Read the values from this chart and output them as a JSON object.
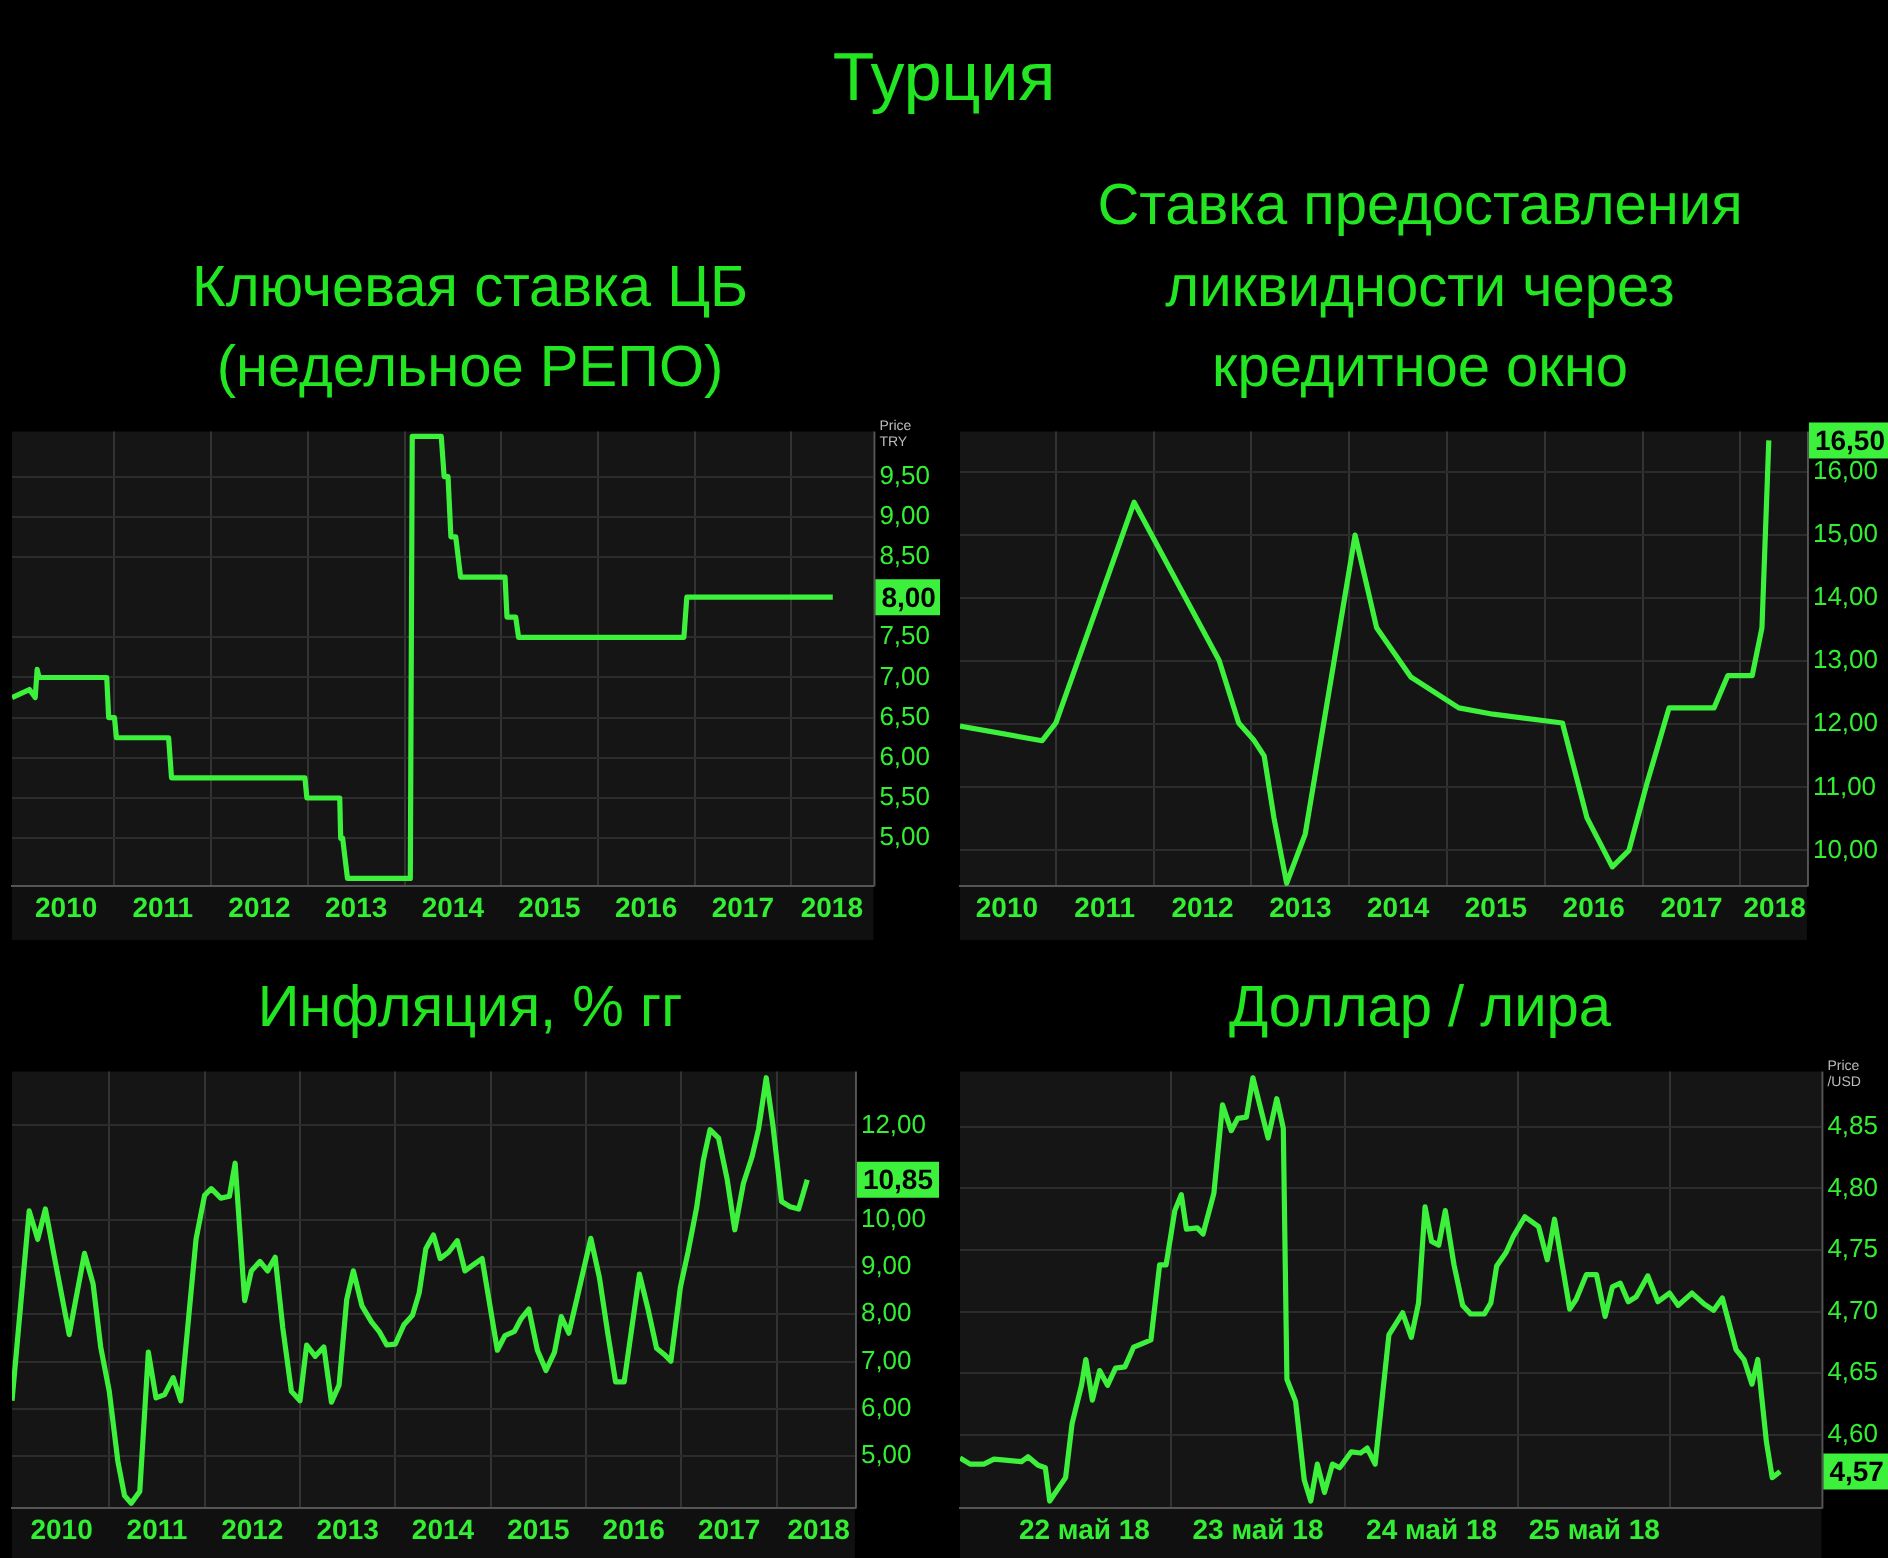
{
  "chart_data": [
    {
      "type": "other",
      "title": "Турция"
    },
    {
      "type": "line",
      "title": "Ключевая ставка ЦБ (недельное РЕПО)",
      "ylabel": "Price TRY",
      "grid": true,
      "legend": false,
      "xlim": [
        2009.94,
        2018.85
      ],
      "ylim": [
        4.4,
        10.06
      ],
      "xticks": [
        {
          "value": 2010.5,
          "label": "2010"
        },
        {
          "value": 2011,
          "label": null
        },
        {
          "value": 2011.5,
          "label": "2011"
        },
        {
          "value": 2012,
          "label": null
        },
        {
          "value": 2012.5,
          "label": "2012"
        },
        {
          "value": 2013,
          "label": null
        },
        {
          "value": 2013.5,
          "label": "2013"
        },
        {
          "value": 2014,
          "label": null
        },
        {
          "value": 2014.5,
          "label": "2014"
        },
        {
          "value": 2015,
          "label": null
        },
        {
          "value": 2015.5,
          "label": "2015"
        },
        {
          "value": 2016,
          "label": null
        },
        {
          "value": 2016.5,
          "label": "2016"
        },
        {
          "value": 2017,
          "label": null
        },
        {
          "value": 2017.5,
          "label": "2017"
        },
        {
          "value": 2018,
          "label": null
        },
        {
          "value": 2018.42,
          "label": "2018"
        }
      ],
      "yticks": [
        {
          "value": 5,
          "label": "5,00"
        },
        {
          "value": 5.5,
          "label": "5,50"
        },
        {
          "value": 6,
          "label": "6,00"
        },
        {
          "value": 6.5,
          "label": "6,50"
        },
        {
          "value": 7,
          "label": "7,00"
        },
        {
          "value": 7.5,
          "label": "7,50"
        },
        {
          "value": 8.5,
          "label": "8,50"
        },
        {
          "value": 9,
          "label": "9,00"
        },
        {
          "value": 9.5,
          "label": "9,50"
        }
      ],
      "annotations": [
        {
          "text": "8,00",
          "y": 8
        }
      ],
      "series": [
        {
          "color": "#3cf03c",
          "x": [
            2009.94,
            2010.12,
            2010.18,
            2010.2,
            2010.22,
            2010.92,
            2010.94,
            2011.0,
            2011.02,
            2011.56,
            2011.59,
            2012.97,
            2012.99,
            2013.33,
            2013.34,
            2013.36,
            2013.41,
            2014.06,
            2014.08,
            2014.38,
            2014.41,
            2014.45,
            2014.48,
            2014.53,
            2014.58,
            2015.04,
            2015.06,
            2015.15,
            2015.18,
            2016.89,
            2016.92,
            2018.43
          ],
          "values": [
            6.75,
            6.85,
            6.75,
            7.1,
            7.0,
            7.0,
            6.5,
            6.5,
            6.25,
            6.25,
            5.75,
            5.75,
            5.5,
            5.5,
            5.0,
            5.0,
            4.5,
            4.5,
            10.0,
            10.0,
            9.5,
            9.5,
            8.75,
            8.75,
            8.25,
            8.25,
            7.75,
            7.75,
            7.5,
            7.5,
            8.0,
            8.0
          ]
        }
      ]
    },
    {
      "type": "line",
      "title": "Ставка предоставления ликвидности через кредитное окно",
      "grid": true,
      "legend": false,
      "xlim": [
        2010.02,
        2018.68
      ],
      "ylim": [
        9.43,
        16.64
      ],
      "xticks": [
        {
          "value": 2010.5,
          "label": "2010"
        },
        {
          "value": 2011,
          "label": null
        },
        {
          "value": 2011.5,
          "label": "2011"
        },
        {
          "value": 2012,
          "label": null
        },
        {
          "value": 2012.5,
          "label": "2012"
        },
        {
          "value": 2013,
          "label": null
        },
        {
          "value": 2013.5,
          "label": "2013"
        },
        {
          "value": 2014,
          "label": null
        },
        {
          "value": 2014.5,
          "label": "2014"
        },
        {
          "value": 2015,
          "label": null
        },
        {
          "value": 2015.5,
          "label": "2015"
        },
        {
          "value": 2016,
          "label": null
        },
        {
          "value": 2016.5,
          "label": "2016"
        },
        {
          "value": 2017,
          "label": null
        },
        {
          "value": 2017.5,
          "label": "2017"
        },
        {
          "value": 2018,
          "label": null
        },
        {
          "value": 2018.35,
          "label": "2018"
        }
      ],
      "yticks": [
        {
          "value": 10,
          "label": "10,00"
        },
        {
          "value": 11,
          "label": "11,00"
        },
        {
          "value": 12,
          "label": "12,00"
        },
        {
          "value": 13,
          "label": "13,00"
        },
        {
          "value": 14,
          "label": "14,00"
        },
        {
          "value": 15,
          "label": "15,00"
        },
        {
          "value": 16,
          "label": "16,00"
        }
      ],
      "annotations": [
        {
          "text": "16,50",
          "y": 16.5
        }
      ],
      "series": [
        {
          "color": "#3cf03c",
          "x": [
            2010.02,
            2010.86,
            2011.0,
            2011.8,
            2012.67,
            2012.87,
            2013.02,
            2013.13,
            2013.23,
            2013.36,
            2013.55,
            2014.06,
            2014.28,
            2014.63,
            2015.12,
            2015.47,
            2016.18,
            2016.43,
            2016.69,
            2016.86,
            2017.04,
            2017.27,
            2017.73,
            2017.87,
            2018.12,
            2018.22,
            2018.29
          ],
          "values": [
            11.97,
            11.74,
            12.02,
            15.52,
            13.01,
            12.02,
            11.76,
            11.5,
            10.52,
            9.48,
            10.26,
            15.0,
            13.53,
            12.75,
            12.26,
            12.16,
            12.02,
            10.52,
            9.74,
            10.0,
            11.04,
            12.26,
            12.26,
            12.77,
            12.77,
            13.53,
            16.5
          ]
        }
      ]
    },
    {
      "type": "line",
      "title": "Инфляция, % гг",
      "grid": true,
      "legend": false,
      "xlim": [
        2009.98,
        2018.82
      ],
      "ylim": [
        3.89,
        13.14
      ],
      "xticks": [
        {
          "value": 2010.5,
          "label": "2010"
        },
        {
          "value": 2011,
          "label": null
        },
        {
          "value": 2011.5,
          "label": "2011"
        },
        {
          "value": 2012,
          "label": null
        },
        {
          "value": 2012.5,
          "label": "2012"
        },
        {
          "value": 2013,
          "label": null
        },
        {
          "value": 2013.5,
          "label": "2013"
        },
        {
          "value": 2014,
          "label": null
        },
        {
          "value": 2014.5,
          "label": "2014"
        },
        {
          "value": 2015,
          "label": null
        },
        {
          "value": 2015.5,
          "label": "2015"
        },
        {
          "value": 2016,
          "label": null
        },
        {
          "value": 2016.5,
          "label": "2016"
        },
        {
          "value": 2017,
          "label": null
        },
        {
          "value": 2017.5,
          "label": "2017"
        },
        {
          "value": 2018,
          "label": null
        },
        {
          "value": 2018.44,
          "label": "2018"
        }
      ],
      "yticks": [
        {
          "value": 5,
          "label": "5,00"
        },
        {
          "value": 6,
          "label": "6,00"
        },
        {
          "value": 7,
          "label": "7,00"
        },
        {
          "value": 8,
          "label": "8,00"
        },
        {
          "value": 9,
          "label": "9,00"
        },
        {
          "value": 10,
          "label": "10,00"
        },
        {
          "value": 12,
          "label": "12,00"
        }
      ],
      "annotations": [
        {
          "text": "10,85",
          "y": 10.85
        }
      ],
      "series": [
        {
          "color": "#3cf03c",
          "x": [
            2009.98,
            2010.16,
            2010.25,
            2010.33,
            2010.44,
            2010.58,
            2010.74,
            2010.83,
            2010.91,
            2011.0,
            2011.09,
            2011.16,
            2011.23,
            2011.32,
            2011.41,
            2011.49,
            2011.58,
            2011.67,
            2011.75,
            2011.91,
            2012.0,
            2012.07,
            2012.17,
            2012.26,
            2012.32,
            2012.42,
            2012.49,
            2012.58,
            2012.66,
            2012.74,
            2012.82,
            2012.91,
            2013.0,
            2013.07,
            2013.16,
            2013.25,
            2013.33,
            2013.41,
            2013.49,
            2013.56,
            2013.65,
            2013.75,
            2013.83,
            2013.91,
            2014.0,
            2014.09,
            2014.18,
            2014.25,
            2014.32,
            2014.4,
            2014.47,
            2014.56,
            2014.65,
            2014.73,
            2014.82,
            2014.91,
            2015.07,
            2015.15,
            2015.25,
            2015.32,
            2015.4,
            2015.49,
            2015.58,
            2015.67,
            2015.74,
            2015.82,
            2015.91,
            2016.05,
            2016.14,
            2016.23,
            2016.31,
            2016.4,
            2016.56,
            2016.65,
            2016.74,
            2016.82,
            2016.89,
            2016.99,
            2017.07,
            2017.16,
            2017.23,
            2017.3,
            2017.39,
            2017.48,
            2017.56,
            2017.65,
            2017.74,
            2017.81,
            2017.89,
            2017.96,
            2018.05,
            2018.14,
            2018.23,
            2018.32
          ],
          "values": [
            6.17,
            10.19,
            9.59,
            10.23,
            9.05,
            7.57,
            9.29,
            8.65,
            7.31,
            6.37,
            4.89,
            4.16,
            4.0,
            4.25,
            7.2,
            6.23,
            6.3,
            6.66,
            6.17,
            9.59,
            10.52,
            10.66,
            10.46,
            10.5,
            11.2,
            8.29,
            8.92,
            9.12,
            8.92,
            9.21,
            7.71,
            6.37,
            6.17,
            7.35,
            7.11,
            7.31,
            6.14,
            6.5,
            8.31,
            8.92,
            8.18,
            7.84,
            7.64,
            7.35,
            7.37,
            7.78,
            7.98,
            8.45,
            9.39,
            9.68,
            9.18,
            9.32,
            9.56,
            8.92,
            9.05,
            9.18,
            7.24,
            7.55,
            7.64,
            7.91,
            8.11,
            7.24,
            6.81,
            7.2,
            7.95,
            7.6,
            8.38,
            9.61,
            8.78,
            7.57,
            6.57,
            6.57,
            8.85,
            8.11,
            7.28,
            7.15,
            7.01,
            8.58,
            9.32,
            10.26,
            11.26,
            11.91,
            11.73,
            10.86,
            9.79,
            10.77,
            11.33,
            11.93,
            13.01,
            12.0,
            10.39,
            10.28,
            10.23,
            10.85
          ]
        }
      ]
    },
    {
      "type": "line",
      "title": "Доллар / лира",
      "ylabel": "Price /USD",
      "grid": true,
      "legend": false,
      "xlim": [
        "2018-05-21T18:48",
        "2018-05-26T17:54"
      ],
      "ylim": [
        4.54,
        4.895
      ],
      "xticks": [
        {
          "value": "2018-05-22T12:00",
          "label": "22 май 18"
        },
        {
          "value": "2018-05-23T00:00",
          "label": null
        },
        {
          "value": "2018-05-23T12:00",
          "label": "23 май 18"
        },
        {
          "value": "2018-05-24T00:00",
          "label": null
        },
        {
          "value": "2018-05-24T12:00",
          "label": "24 май 18"
        },
        {
          "value": "2018-05-25T00:00",
          "label": null
        },
        {
          "value": "2018-05-25T10:30",
          "label": "25 май 18"
        },
        {
          "value": "2018-05-25T21:00",
          "label": null
        }
      ],
      "yticks": [
        {
          "value": 4.6,
          "label": "4,60"
        },
        {
          "value": 4.65,
          "label": "4,65"
        },
        {
          "value": 4.7,
          "label": "4,70"
        },
        {
          "value": 4.75,
          "label": "4,75"
        },
        {
          "value": 4.8,
          "label": "4,80"
        },
        {
          "value": 4.85,
          "label": "4,85"
        }
      ],
      "annotations": [
        {
          "text": "4,57",
          "y": 4.57
        }
      ],
      "series": [
        {
          "color": "#3cf03c",
          "x": [
            "2018-05-21T18:48",
            "2018-05-21T20:12",
            "2018-05-21T22:06",
            "2018-05-21T23:30",
            "2018-05-22T01:24",
            "2018-05-22T03:18",
            "2018-05-22T04:12",
            "2018-05-22T05:36",
            "2018-05-22T06:36",
            "2018-05-22T07:12",
            "2018-05-22T09:24",
            "2018-05-22T10:18",
            "2018-05-22T11:36",
            "2018-05-22T12:12",
            "2018-05-22T13:06",
            "2018-05-22T14:06",
            "2018-05-22T15:12",
            "2018-05-22T16:18",
            "2018-05-22T17:36",
            "2018-05-22T18:48",
            "2018-05-22T20:00",
            "2018-05-22T21:12",
            "2018-05-22T22:24",
            "2018-05-22T23:18",
            "2018-05-23T00:30",
            "2018-05-23T01:24",
            "2018-05-23T02:06",
            "2018-05-23T03:36",
            "2018-05-23T04:24",
            "2018-05-23T05:54",
            "2018-05-23T07:06",
            "2018-05-23T08:18",
            "2018-05-23T09:12",
            "2018-05-23T10:24",
            "2018-05-23T11:18",
            "2018-05-23T13:24",
            "2018-05-23T14:36",
            "2018-05-23T15:30",
            "2018-05-23T16:00",
            "2018-05-23T17:12",
            "2018-05-23T18:24",
            "2018-05-23T19:18",
            "2018-05-23T20:12",
            "2018-05-23T21:12",
            "2018-05-23T22:18",
            "2018-05-23T23:18",
            "2018-05-24T00:54",
            "2018-05-24T02:12",
            "2018-05-24T03:06",
            "2018-05-24T04:12",
            "2018-05-24T06:06",
            "2018-05-24T08:00",
            "2018-05-24T09:12",
            "2018-05-24T10:12",
            "2018-05-24T11:06",
            "2018-05-24T12:00",
            "2018-05-24T13:00",
            "2018-05-24T13:54",
            "2018-05-24T15:06",
            "2018-05-24T16:18",
            "2018-05-24T17:24",
            "2018-05-24T19:18",
            "2018-05-24T20:12",
            "2018-05-24T21:00",
            "2018-05-24T22:18",
            "2018-05-24T23:18",
            "2018-05-25T00:54",
            "2018-05-25T02:48",
            "2018-05-25T04:00",
            "2018-05-25T05:00",
            "2018-05-25T07:06",
            "2018-05-25T08:00",
            "2018-05-25T09:24",
            "2018-05-25T10:48",
            "2018-05-25T12:00",
            "2018-05-25T13:00",
            "2018-05-25T14:06",
            "2018-05-25T15:12",
            "2018-05-25T16:18",
            "2018-05-25T17:54",
            "2018-05-25T19:18",
            "2018-05-25T20:54",
            "2018-05-25T22:06",
            "2018-05-26T00:00",
            "2018-05-26T01:42",
            "2018-05-26T03:00",
            "2018-05-26T04:12",
            "2018-05-26T06:06",
            "2018-05-26T07:12",
            "2018-05-26T08:18",
            "2018-05-26T09:06",
            "2018-05-26T10:18",
            "2018-05-26T11:06",
            "2018-05-26T12:12"
          ],
          "values": [
            4.581,
            4.576,
            4.576,
            4.58,
            4.579,
            4.578,
            4.582,
            4.575,
            4.573,
            4.546,
            4.565,
            4.609,
            4.64,
            4.661,
            4.628,
            4.652,
            4.64,
            4.654,
            4.655,
            4.671,
            4.674,
            4.677,
            4.738,
            4.738,
            4.782,
            4.795,
            4.767,
            4.768,
            4.763,
            4.796,
            4.868,
            4.847,
            4.857,
            4.858,
            4.89,
            4.841,
            4.873,
            4.849,
            4.645,
            4.627,
            4.563,
            4.546,
            4.576,
            4.553,
            4.576,
            4.573,
            4.586,
            4.585,
            4.589,
            4.576,
            4.681,
            4.699,
            4.679,
            4.707,
            4.785,
            4.757,
            4.754,
            4.782,
            4.738,
            4.705,
            4.698,
            4.698,
            4.707,
            4.737,
            4.748,
            4.761,
            4.777,
            4.769,
            4.742,
            4.775,
            4.702,
            4.71,
            4.73,
            4.73,
            4.696,
            4.72,
            4.723,
            4.708,
            4.712,
            4.729,
            4.708,
            4.715,
            4.705,
            4.715,
            4.706,
            4.701,
            4.711,
            4.669,
            4.661,
            4.641,
            4.661,
            4.594,
            4.565,
            4.57
          ]
        }
      ]
    }
  ]
}
